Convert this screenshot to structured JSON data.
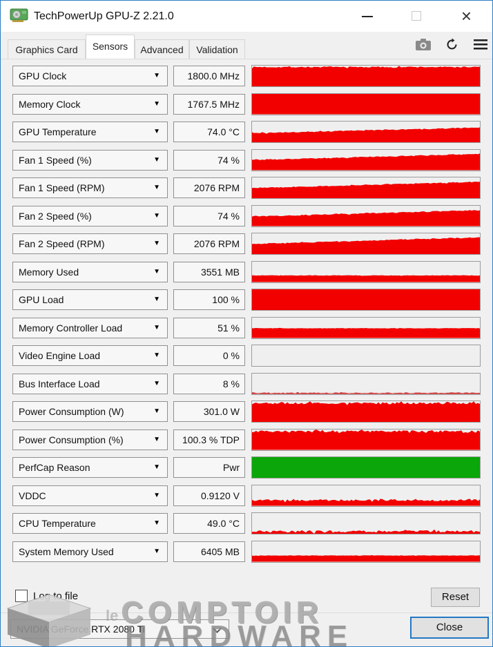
{
  "window": {
    "title": "TechPowerUp GPU-Z 2.21.0",
    "close_glyph": "×"
  },
  "tabs": [
    {
      "label": "Graphics Card",
      "active": false
    },
    {
      "label": "Sensors",
      "active": true
    },
    {
      "label": "Advanced",
      "active": false
    },
    {
      "label": "Validation",
      "active": false
    }
  ],
  "toolbar_icons": [
    "screenshot-icon",
    "refresh-icon",
    "menu-icon"
  ],
  "colors": {
    "window_border": "#2b7cc1",
    "graph_red": "#f20000",
    "graph_green": "#0aa60a",
    "graph_bg": "#efefef",
    "focus_blue": "#2277c4"
  },
  "dropdown_arrow_glyph": "▼",
  "sensors": [
    {
      "label": "GPU Clock",
      "value": "1800.0 MHz",
      "graph": {
        "start": 93,
        "end": 93,
        "noise": 3,
        "step": false,
        "color": "#f20000"
      }
    },
    {
      "label": "Memory Clock",
      "value": "1767.5 MHz",
      "graph": {
        "start": 100,
        "end": 100,
        "noise": 0,
        "step": false,
        "color": "#f20000"
      }
    },
    {
      "label": "GPU Temperature",
      "value": "74.0 °C",
      "graph": {
        "start": 45,
        "end": 72,
        "noise": 2,
        "step": true,
        "color": "#f20000"
      }
    },
    {
      "label": "Fan 1 Speed (%)",
      "value": "74 %",
      "graph": {
        "start": 50,
        "end": 80,
        "noise": 2,
        "step": true,
        "color": "#f20000"
      }
    },
    {
      "label": "Fan 1 Speed (RPM)",
      "value": "2076 RPM",
      "graph": {
        "start": 50,
        "end": 80,
        "noise": 2,
        "step": true,
        "color": "#f20000"
      }
    },
    {
      "label": "Fan 2 Speed (%)",
      "value": "74 %",
      "graph": {
        "start": 48,
        "end": 78,
        "noise": 2,
        "step": true,
        "color": "#f20000"
      }
    },
    {
      "label": "Fan 2 Speed (RPM)",
      "value": "2076 RPM",
      "graph": {
        "start": 50,
        "end": 82,
        "noise": 2,
        "step": true,
        "color": "#f20000"
      }
    },
    {
      "label": "Memory Used",
      "value": "3551 MB",
      "graph": {
        "start": 32,
        "end": 32,
        "noise": 1,
        "step": false,
        "color": "#f20000"
      }
    },
    {
      "label": "GPU Load",
      "value": "100 %",
      "graph": {
        "start": 100,
        "end": 100,
        "noise": 0,
        "step": false,
        "color": "#f20000"
      }
    },
    {
      "label": "Memory Controller Load",
      "value": "51 %",
      "graph": {
        "start": 47,
        "end": 47,
        "noise": 1,
        "step": false,
        "color": "#f20000"
      }
    },
    {
      "label": "Video Engine Load",
      "value": "0 %",
      "graph": {
        "start": 0,
        "end": 0,
        "noise": 0,
        "step": false,
        "color": "#f20000"
      }
    },
    {
      "label": "Bus Interface Load",
      "value": "8 %",
      "graph": {
        "start": 5,
        "end": 5,
        "noise": 2,
        "step": false,
        "color": "#c81616"
      }
    },
    {
      "label": "Power Consumption (W)",
      "value": "301.0 W",
      "graph": {
        "start": 90,
        "end": 90,
        "noise": 5,
        "step": false,
        "color": "#f20000"
      }
    },
    {
      "label": "Power Consumption (%)",
      "value": "100.3 % TDP",
      "graph": {
        "start": 90,
        "end": 90,
        "noise": 5,
        "step": false,
        "color": "#f20000"
      }
    },
    {
      "label": "PerfCap Reason",
      "value": "Pwr",
      "graph": {
        "start": 100,
        "end": 100,
        "noise": 0,
        "step": false,
        "color": "#0aa60a"
      }
    },
    {
      "label": "VDDC",
      "value": "0.9120 V",
      "graph": {
        "start": 27,
        "end": 27,
        "noise": 5,
        "step": false,
        "color": "#f20000"
      }
    },
    {
      "label": "CPU Temperature",
      "value": "49.0 °C",
      "graph": {
        "start": 11,
        "end": 11,
        "noise": 6,
        "step": false,
        "color": "#f20000"
      }
    },
    {
      "label": "System Memory Used",
      "value": "6405 MB",
      "graph": {
        "start": 30,
        "end": 30,
        "noise": 1,
        "step": false,
        "color": "#f20000"
      }
    }
  ],
  "footer": {
    "log_to_file_label": "Log to file",
    "log_checked": false,
    "reset_label": "Reset",
    "gpu_select_value": "NVIDIA GeForce RTX 2080 Ti",
    "close_label": "Close"
  },
  "watermark": {
    "prefix": "le",
    "line1": "COMPTOIR",
    "line2": "HARDWARE"
  }
}
